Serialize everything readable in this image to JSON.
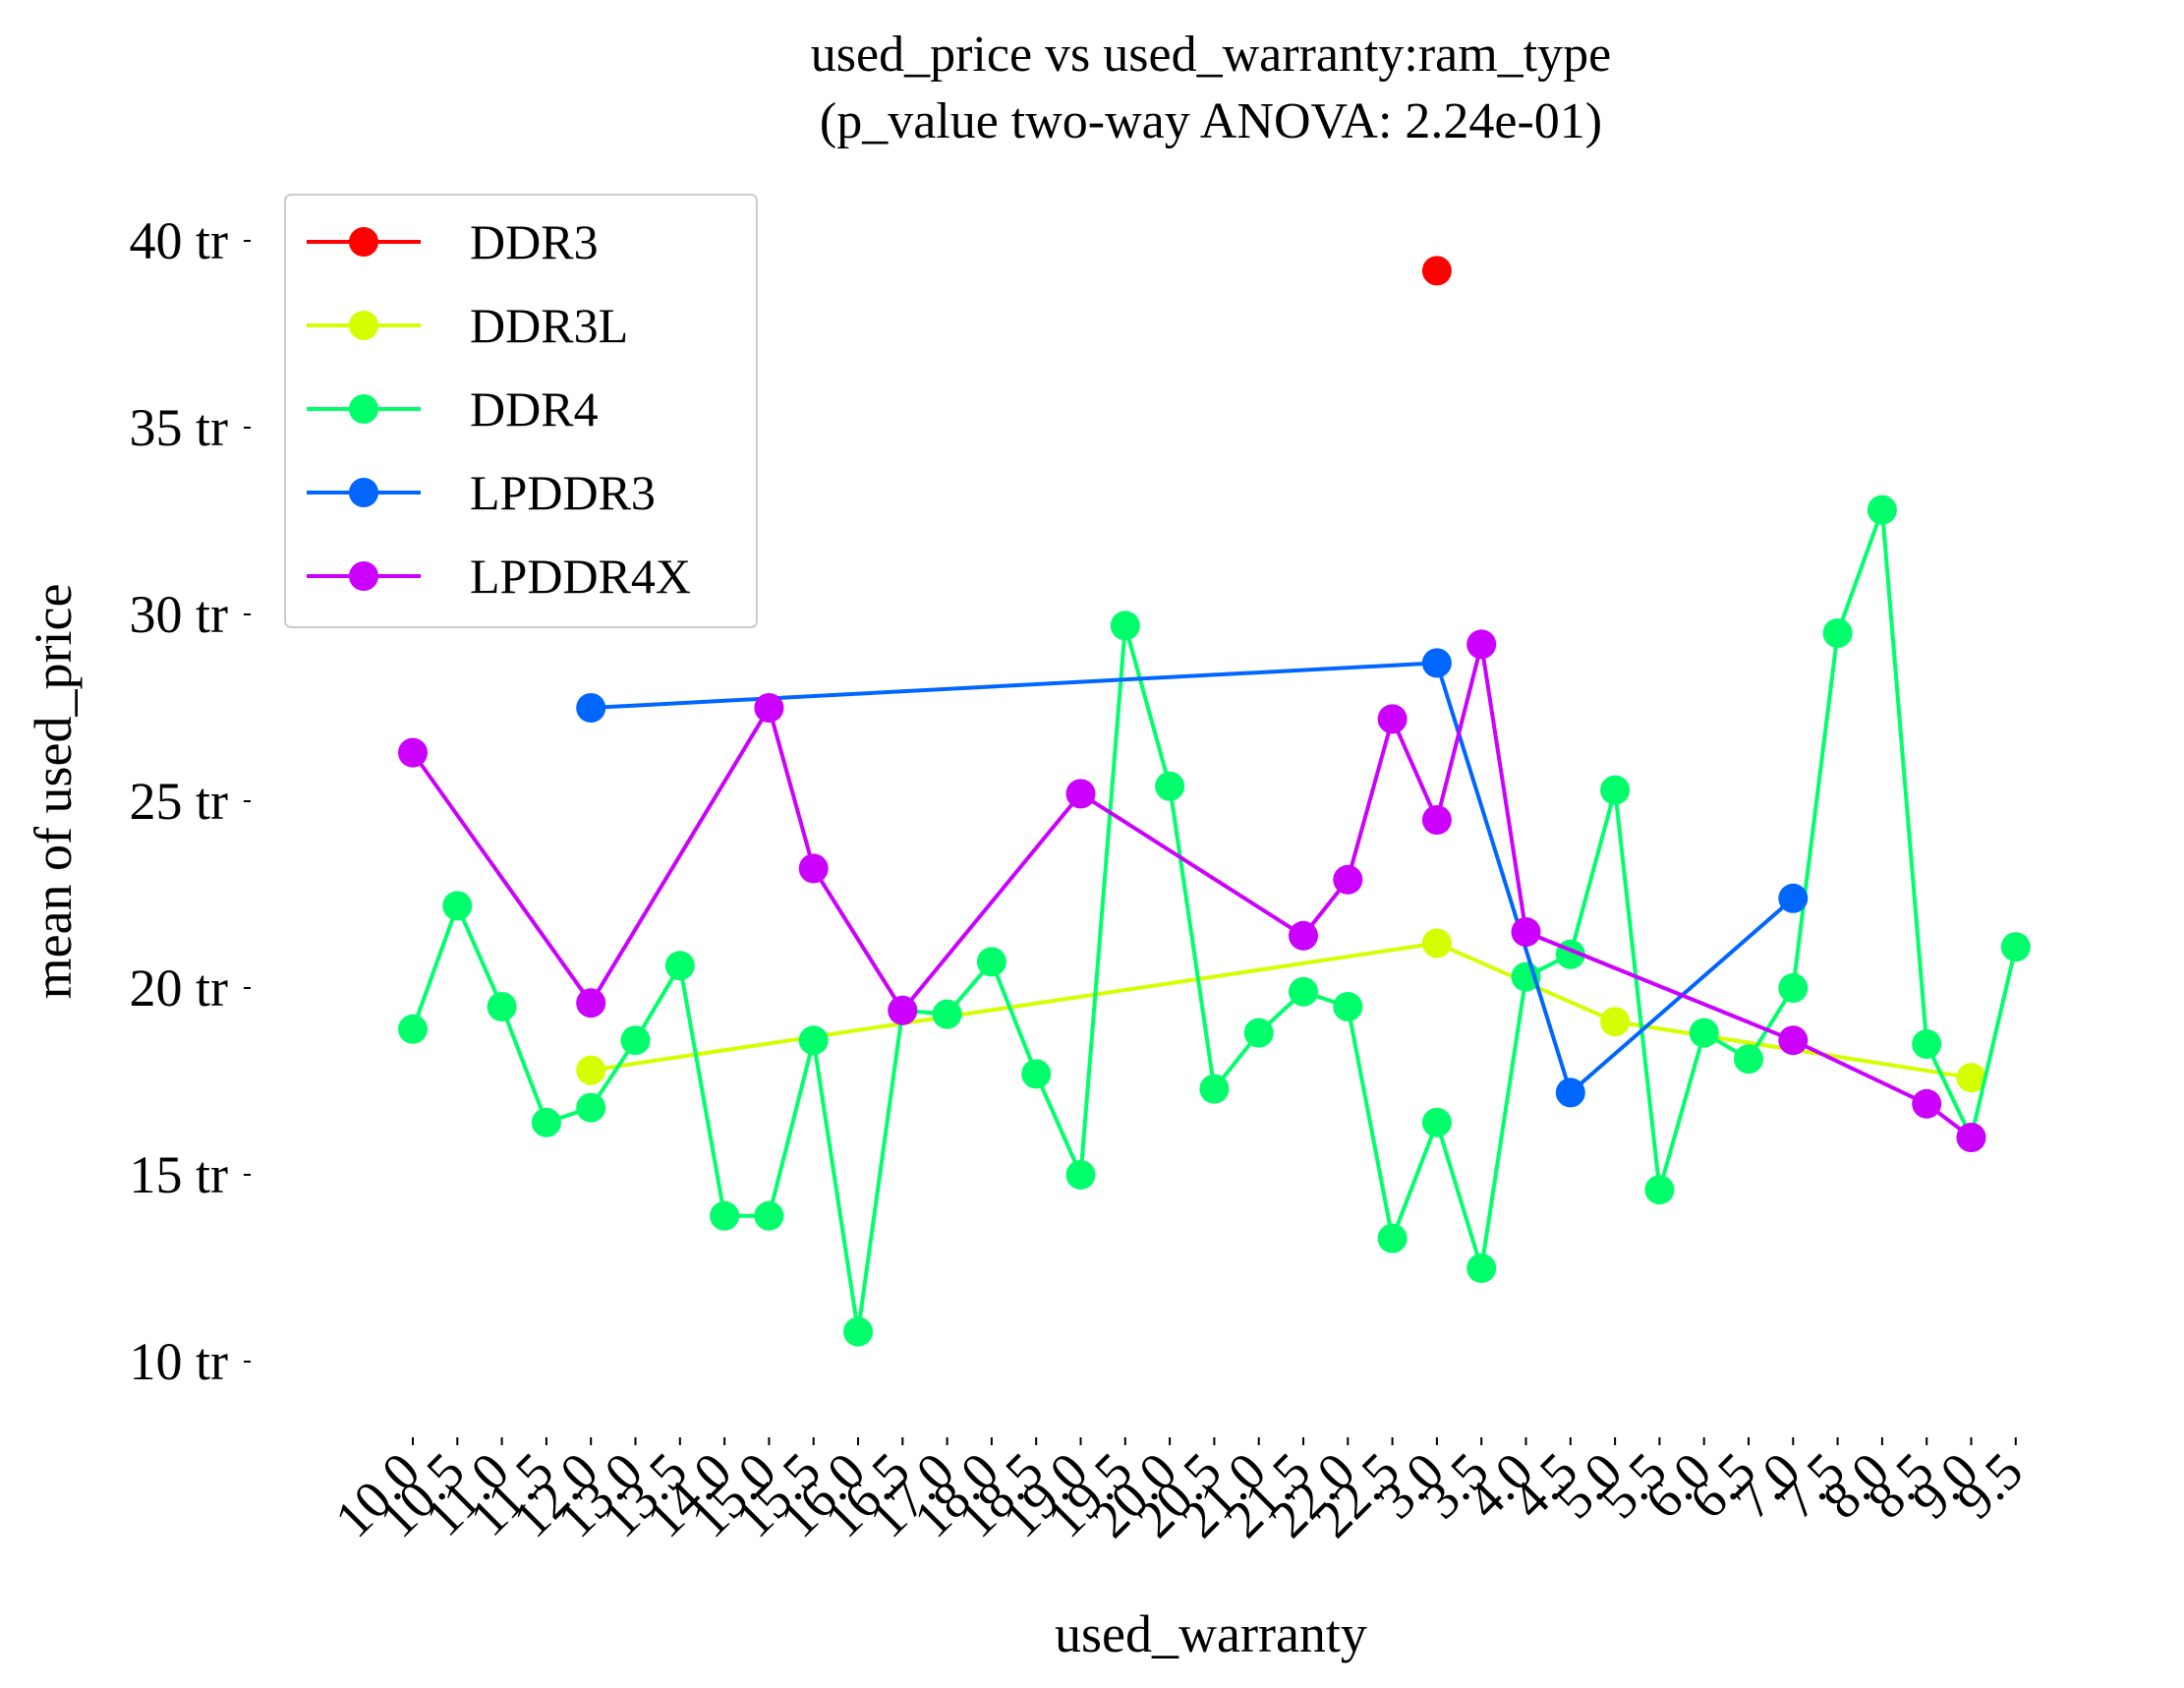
{
  "chart_data": {
    "type": "line",
    "title": [
      "used_price vs used_warranty:ram_type",
      "(p_value two-way ANOVA: 2.24e-01)"
    ],
    "xlabel": "used_warranty",
    "ylabel": "mean of used_price",
    "categories": [
      "10.0",
      "10.5",
      "11.0",
      "11.5",
      "12.0",
      "13.0",
      "13.5",
      "14.0",
      "15.0",
      "15.5",
      "16.0",
      "16.5",
      "17.0",
      "18.0",
      "18.5",
      "19.0",
      "19.5",
      "20.0",
      "20.5",
      "21.0",
      "21.5",
      "22.0",
      "22.5",
      "3.0",
      "3.5",
      "4.0",
      "4.5",
      "5.0",
      "5.5",
      "6.0",
      "6.5",
      "7.0",
      "7.5",
      "8.0",
      "8.5",
      "9.0",
      "9.5"
    ],
    "yticks": [
      {
        "value": 10,
        "label": "10 tr"
      },
      {
        "value": 15,
        "label": "15 tr"
      },
      {
        "value": 20,
        "label": "20 tr"
      },
      {
        "value": 25,
        "label": "25 tr"
      },
      {
        "value": 30,
        "label": "30 tr"
      },
      {
        "value": 35,
        "label": "35 tr"
      },
      {
        "value": 40,
        "label": "40 tr"
      }
    ],
    "ylim": [
      8.6,
      41.4
    ],
    "grid": false,
    "legend_position": "top-left",
    "series": [
      {
        "name": "DDR3",
        "color": "#ff0000",
        "values": [
          null,
          null,
          null,
          null,
          null,
          null,
          null,
          null,
          null,
          null,
          null,
          null,
          null,
          null,
          null,
          null,
          null,
          null,
          null,
          null,
          null,
          null,
          null,
          39.2,
          null,
          null,
          null,
          null,
          null,
          null,
          null,
          null,
          null,
          null,
          null,
          null,
          null
        ]
      },
      {
        "name": "DDR3L",
        "color": "#d4ff00",
        "values": [
          null,
          null,
          null,
          null,
          17.8,
          null,
          null,
          null,
          null,
          null,
          null,
          null,
          null,
          null,
          null,
          null,
          null,
          null,
          null,
          null,
          null,
          null,
          null,
          21.2,
          null,
          null,
          null,
          19.1,
          null,
          null,
          null,
          null,
          null,
          null,
          null,
          17.6,
          null
        ]
      },
      {
        "name": "DDR4",
        "color": "#00ff6a",
        "values": [
          18.9,
          22.2,
          19.5,
          16.4,
          16.8,
          18.6,
          20.6,
          13.9,
          13.9,
          18.6,
          10.8,
          19.4,
          19.3,
          20.7,
          17.7,
          15.0,
          29.7,
          25.4,
          17.3,
          18.8,
          19.9,
          19.5,
          13.3,
          16.4,
          12.5,
          20.3,
          20.9,
          25.3,
          14.6,
          18.8,
          18.1,
          20.0,
          29.5,
          32.8,
          18.5,
          16.0,
          21.1
        ]
      },
      {
        "name": "LPDDR3",
        "color": "#0066ff",
        "values": [
          null,
          null,
          null,
          null,
          27.5,
          null,
          null,
          null,
          null,
          null,
          null,
          null,
          null,
          null,
          null,
          null,
          null,
          null,
          null,
          null,
          null,
          null,
          null,
          28.7,
          null,
          null,
          17.2,
          null,
          null,
          null,
          null,
          22.4,
          null,
          null,
          null,
          null,
          null
        ]
      },
      {
        "name": "LPDDR4X",
        "color": "#cc00ff",
        "values": [
          26.3,
          null,
          null,
          null,
          19.6,
          null,
          null,
          null,
          27.5,
          23.2,
          null,
          19.4,
          null,
          null,
          null,
          25.2,
          null,
          null,
          null,
          null,
          21.4,
          22.9,
          27.2,
          24.5,
          29.2,
          21.5,
          null,
          null,
          null,
          null,
          null,
          18.6,
          null,
          null,
          16.9,
          16.0,
          null
        ]
      }
    ]
  }
}
